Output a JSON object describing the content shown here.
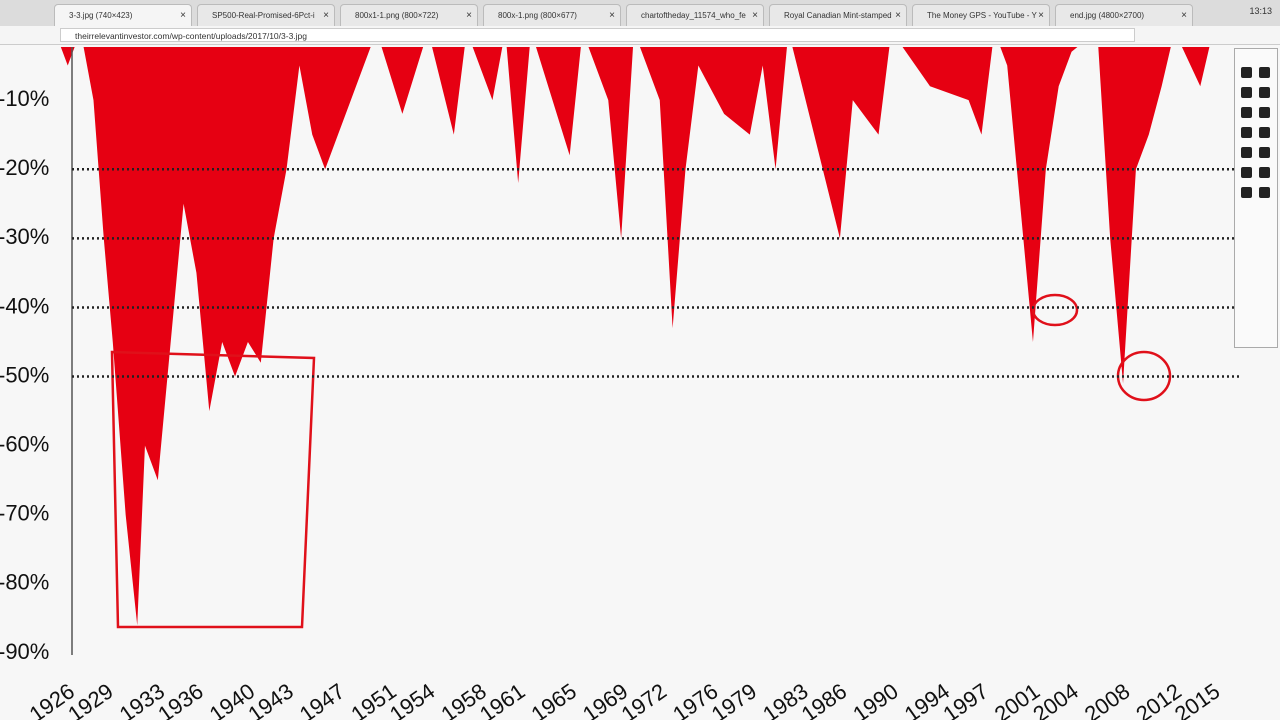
{
  "browser": {
    "tabs": [
      "3-3.jpg (740×423)",
      "SP500-Real-Promised-6Pct-i",
      "800x1-1.png (800×722)",
      "800x-1.png (800×677)",
      "chartoftheday_11574_who_fe",
      "Royal Canadian Mint-stamped",
      "The Money GPS - YouTube - Y",
      "end.jpg (4800×2700)"
    ],
    "clock": "13:13",
    "url": "theirrelevantinvestor.com/wp-content/uploads/2017/10/3-3.jpg"
  },
  "chart_data": {
    "type": "area",
    "x": [
      1926,
      1927,
      1928,
      1929,
      1929.8,
      1930.5,
      1931.5,
      1932.4,
      1933,
      1934,
      1935,
      1936,
      1937,
      1938,
      1939,
      1940,
      1941,
      1942,
      1943,
      1944,
      1945,
      1946,
      1947,
      1948,
      1949,
      1950,
      1951,
      1953,
      1955,
      1957,
      1958,
      1960,
      1961,
      1962,
      1963,
      1966,
      1967,
      1969,
      1970,
      1971,
      1973,
      1974,
      1975,
      1976,
      1978,
      1980,
      1981,
      1982,
      1983,
      1987,
      1988,
      1990,
      1991,
      1994,
      1997,
      1998,
      1999,
      2000,
      2001,
      2002,
      2003,
      2004,
      2005,
      2007,
      2008,
      2009,
      2010,
      2011,
      2012,
      2013,
      2015,
      2016
    ],
    "values": [
      0,
      -5,
      0,
      -10,
      -30,
      -45,
      -70,
      -86,
      -60,
      -65,
      -45,
      -25,
      -35,
      -55,
      -45,
      -50,
      -45,
      -48,
      -30,
      -20,
      -5,
      -15,
      -20,
      -15,
      -10,
      -5,
      0,
      -12,
      0,
      -15,
      0,
      -10,
      0,
      -22,
      0,
      -18,
      0,
      -10,
      -30,
      0,
      -10,
      -43,
      -20,
      -5,
      -12,
      -15,
      -5,
      -20,
      0,
      -30,
      -10,
      -15,
      0,
      -8,
      -10,
      -15,
      0,
      -5,
      -25,
      -45,
      -20,
      -8,
      -3,
      0,
      -30,
      -51,
      -20,
      -15,
      -8,
      0,
      -8,
      0
    ],
    "color": "#e60012",
    "xlim": [
      1925,
      2017
    ],
    "ylim": [
      -90,
      0
    ],
    "xticks": [
      1926,
      1929,
      1933,
      1936,
      1940,
      1943,
      1947,
      1951,
      1954,
      1958,
      1961,
      1965,
      1969,
      1972,
      1976,
      1979,
      1983,
      1986,
      1990,
      1994,
      1997,
      2001,
      2004,
      2008,
      2012,
      2015
    ],
    "yticks": [
      {
        "value": -10,
        "label": "-10%"
      },
      {
        "value": -20,
        "label": "-20%"
      },
      {
        "value": -30,
        "label": "-30%"
      },
      {
        "value": -40,
        "label": "-40%"
      },
      {
        "value": -50,
        "label": "-50%"
      },
      {
        "value": -60,
        "label": "-60%"
      },
      {
        "value": -70,
        "label": "-70%"
      },
      {
        "value": -80,
        "label": "-80%"
      },
      {
        "value": -90,
        "label": "-90%"
      }
    ]
  }
}
